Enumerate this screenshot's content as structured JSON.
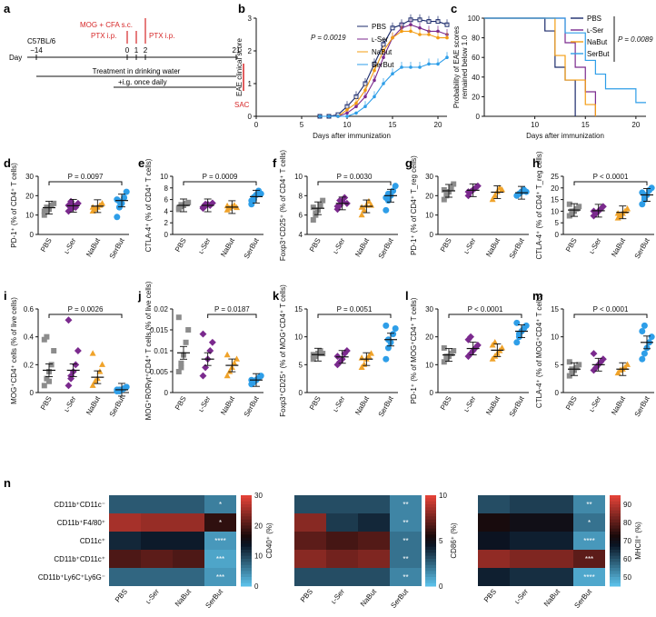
{
  "colors": {
    "PBS": "#8c8c8c",
    "L-Ser": "#7b2a8e",
    "NaBut": "#f0a32a",
    "SerBut": "#2e9ee8",
    "red": "#d62728",
    "line_PBS": "#1b2a6b",
    "line_NaBut": "#f39c12"
  },
  "groups": [
    "PBS",
    "L-Ser",
    "NaBut",
    "SerBut"
  ],
  "panel_a": {
    "label": "a",
    "strain": "C57BL/6",
    "day_label": "Day",
    "days": [
      "−14",
      "0",
      "1",
      "2",
      "21"
    ],
    "mog": "MOG + CFA s.c.",
    "ptx1": "PTX i.p.",
    "ptx2": "PTX i.p.",
    "treatment": "Treatment in drinking water",
    "ig": "+i.g. once daily",
    "sac": "SAC"
  },
  "chart_data": [
    {
      "id": "b",
      "type": "line",
      "ylabel": "EAE clinical score",
      "xlabel": "Days after immunization",
      "pvalue": "P = 0.0019",
      "xlim": [
        0,
        21
      ],
      "ylim": [
        0,
        3
      ],
      "xticks": [
        0,
        5,
        10,
        15,
        20
      ],
      "yticks": [
        0,
        1,
        2,
        3
      ],
      "x": [
        7,
        8,
        9,
        10,
        11,
        12,
        13,
        14,
        15,
        16,
        17,
        18,
        19,
        20,
        21
      ],
      "series": [
        {
          "name": "PBS",
          "values": [
            0,
            0,
            0.05,
            0.3,
            0.6,
            1.0,
            1.6,
            2.2,
            2.7,
            2.8,
            2.95,
            2.95,
            2.9,
            2.9,
            2.8
          ]
        },
        {
          "name": "L-Ser",
          "values": [
            0,
            0,
            0,
            0.1,
            0.3,
            0.6,
            1.1,
            1.8,
            2.4,
            2.7,
            2.8,
            2.7,
            2.6,
            2.6,
            2.5
          ]
        },
        {
          "name": "NaBut",
          "values": [
            0,
            0,
            0,
            0.2,
            0.4,
            0.8,
            1.4,
            2.0,
            2.4,
            2.6,
            2.6,
            2.5,
            2.5,
            2.4,
            2.4
          ]
        },
        {
          "name": "SerBut",
          "values": [
            0,
            0,
            0,
            0,
            0.1,
            0.3,
            0.6,
            1.0,
            1.3,
            1.5,
            1.5,
            1.5,
            1.6,
            1.6,
            1.8
          ]
        }
      ]
    },
    {
      "id": "c",
      "type": "line",
      "ylabel": "Probability of EAE scores remained below 1.0",
      "xlabel": "Days after immunization",
      "pvalue": "P = 0.0089",
      "xlim": [
        5,
        21
      ],
      "ylim": [
        0,
        100
      ],
      "xticks": [
        10,
        15,
        20
      ],
      "yticks": [
        0,
        20,
        40,
        60,
        80,
        100
      ],
      "series": [
        {
          "name": "PBS",
          "steps": [
            [
              5,
              100
            ],
            [
              11,
              100
            ],
            [
              11,
              87
            ],
            [
              12,
              87
            ],
            [
              12,
              50
            ],
            [
              13,
              50
            ],
            [
              13,
              37
            ],
            [
              14,
              37
            ],
            [
              14,
              0
            ]
          ]
        },
        {
          "name": "L-Ser",
          "steps": [
            [
              5,
              100
            ],
            [
              13,
              100
            ],
            [
              13,
              75
            ],
            [
              14,
              75
            ],
            [
              14,
              50
            ],
            [
              15,
              50
            ],
            [
              15,
              25
            ],
            [
              16,
              25
            ],
            [
              16,
              0
            ]
          ]
        },
        {
          "name": "NaBut",
          "steps": [
            [
              5,
              100
            ],
            [
              12,
              100
            ],
            [
              12,
              62
            ],
            [
              13,
              62
            ],
            [
              13,
              37
            ],
            [
              15,
              37
            ],
            [
              15,
              12
            ],
            [
              16,
              12
            ],
            [
              16,
              0
            ]
          ]
        },
        {
          "name": "SerBut",
          "steps": [
            [
              5,
              100
            ],
            [
              13,
              100
            ],
            [
              13,
              85
            ],
            [
              15,
              85
            ],
            [
              15,
              57
            ],
            [
              16,
              57
            ],
            [
              16,
              43
            ],
            [
              17,
              43
            ],
            [
              17,
              28
            ],
            [
              20,
              28
            ],
            [
              20,
              14
            ],
            [
              21,
              14
            ]
          ]
        }
      ]
    },
    {
      "id": "d",
      "type": "scatter",
      "ylabel": "PD-1⁺ (% of CD4⁺ T cells)",
      "ylim": [
        0,
        30
      ],
      "yticks": [
        0,
        10,
        20,
        30
      ],
      "pvalue": "P = 0.0097",
      "bracket": [
        0,
        3
      ],
      "mean": [
        13.8,
        14.8,
        14.6,
        17.5
      ],
      "points": [
        [
          10,
          12,
          13,
          15,
          16,
          12,
          14
        ],
        [
          12,
          13,
          15,
          14,
          16,
          15,
          17,
          14
        ],
        [
          12,
          13,
          14,
          15,
          16,
          14
        ],
        [
          9,
          14,
          16,
          19,
          22,
          18,
          17
        ]
      ]
    },
    {
      "id": "e",
      "type": "scatter",
      "ylabel": "CTLA-4⁺ (% of CD4⁺ T cells)",
      "ylim": [
        0,
        10
      ],
      "yticks": [
        0,
        2,
        4,
        6,
        8,
        10
      ],
      "pvalue": "P = 0.0009",
      "bracket": [
        0,
        3
      ],
      "mean": [
        5.0,
        5.0,
        4.7,
        6.5
      ],
      "points": [
        [
          4.3,
          4.8,
          5.0,
          5.3,
          5.5,
          4.6,
          5.1
        ],
        [
          4.5,
          4.9,
          5.2,
          5.0,
          5.4,
          4.7,
          5.2
        ],
        [
          4.2,
          4.5,
          4.8,
          5.0,
          4.6,
          4.9
        ],
        [
          5.2,
          6.0,
          6.8,
          7.5,
          7.0,
          5.8,
          6.4
        ]
      ]
    },
    {
      "id": "f",
      "type": "scatter",
      "ylabel": "Foxp3⁺CD25⁺ (% of CD4⁺ T cells)",
      "ylim": [
        4,
        10
      ],
      "yticks": [
        4,
        6,
        8,
        10
      ],
      "pvalue": "P = 0.0030",
      "bracket": [
        0,
        3
      ],
      "mean": [
        6.7,
        7.2,
        6.9,
        8.0
      ],
      "points": [
        [
          5.5,
          6.0,
          6.5,
          7.0,
          7.5,
          6.8,
          6.2
        ],
        [
          6.6,
          7.0,
          7.4,
          7.8,
          7.2,
          6.9,
          7.5
        ],
        [
          6.0,
          6.5,
          7.0,
          7.4,
          7.0,
          6.8
        ],
        [
          6.5,
          7.5,
          8.0,
          8.5,
          9.0,
          7.8,
          8.2
        ]
      ]
    },
    {
      "id": "g",
      "type": "scatter",
      "ylabel": "PD-1⁺ (% of CD4⁺ T_reg cells)",
      "ylim": [
        0,
        30
      ],
      "yticks": [
        0,
        10,
        20,
        30
      ],
      "mean": [
        22.5,
        22.8,
        21.8,
        21.5
      ],
      "points": [
        [
          18,
          20,
          22,
          24,
          26,
          23,
          21
        ],
        [
          20,
          22,
          23,
          24,
          25,
          22
        ],
        [
          18,
          20,
          22,
          24,
          23
        ],
        [
          20,
          21,
          22,
          23,
          22
        ]
      ]
    },
    {
      "id": "h",
      "type": "scatter",
      "ylabel": "CTLA-4⁺ (% of CD4⁺ T_reg cells)",
      "ylim": [
        0,
        25
      ],
      "yticks": [
        0,
        5,
        10,
        15,
        20,
        25
      ],
      "pvalue": "P < 0.0001",
      "bracket": [
        0,
        3
      ],
      "mean": [
        10.5,
        10.2,
        9.5,
        17.0
      ],
      "points": [
        [
          8,
          9,
          10,
          11,
          12,
          13,
          10
        ],
        [
          8,
          9,
          10,
          11,
          12,
          10
        ],
        [
          7,
          8,
          9,
          10,
          11,
          9
        ],
        [
          13,
          15,
          17,
          19,
          20,
          18,
          16
        ]
      ]
    },
    {
      "id": "i",
      "type": "scatter",
      "ylabel": "MOG⁺CD4⁺ cells (% of live cells)",
      "ylim": [
        0,
        0.6
      ],
      "yticks": [
        0,
        0.2,
        0.4,
        0.6
      ],
      "pvalue": "P = 0.0026",
      "bracket": [
        0,
        3
      ],
      "mean": [
        0.16,
        0.16,
        0.11,
        0.02
      ],
      "points": [
        [
          0.05,
          0.1,
          0.15,
          0.2,
          0.3,
          0.38,
          0.4,
          0.08
        ],
        [
          0.05,
          0.1,
          0.15,
          0.2,
          0.3,
          0.52,
          0.12
        ],
        [
          0.05,
          0.08,
          0.1,
          0.15,
          0.2,
          0.28
        ],
        [
          0.01,
          0.02,
          0.02,
          0.03,
          0.04,
          0.02,
          0.01
        ]
      ]
    },
    {
      "id": "j",
      "type": "scatter",
      "ylabel": "MOG⁺RORγt⁺CD4⁺ T cells (% of live cells)",
      "ylim": [
        0,
        0.02
      ],
      "yticks": [
        0,
        0.005,
        0.01,
        0.015,
        0.02
      ],
      "pvalue": "P = 0.0187",
      "bracket": [
        1,
        3
      ],
      "mean": [
        0.0095,
        0.008,
        0.0065,
        0.003
      ],
      "points": [
        [
          0.005,
          0.007,
          0.009,
          0.012,
          0.015,
          0.018,
          0.006
        ],
        [
          0.004,
          0.006,
          0.008,
          0.01,
          0.012,
          0.014
        ],
        [
          0.004,
          0.005,
          0.006,
          0.007,
          0.008,
          0.009
        ],
        [
          0.002,
          0.0025,
          0.003,
          0.0035,
          0.004,
          0.003
        ]
      ]
    },
    {
      "id": "k",
      "type": "scatter",
      "ylabel": "Foxp3⁺CD25⁺ (% of MOG⁺CD4⁺ T cells)",
      "ylim": [
        0,
        15
      ],
      "yticks": [
        0,
        5,
        10,
        15
      ],
      "pvalue": "P = 0.0051",
      "bracket": [
        0,
        3
      ],
      "mean": [
        6.8,
        6.4,
        6.0,
        9.5
      ],
      "points": [
        [
          6.0,
          6.5,
          7.0,
          7.5,
          7.0,
          6.8
        ],
        [
          5.0,
          5.5,
          6.0,
          7.0,
          7.5,
          6.5
        ],
        [
          4.5,
          5.0,
          6.0,
          6.5,
          7.0,
          6.2
        ],
        [
          6.0,
          8.0,
          9.0,
          10.5,
          11.5,
          12.0,
          9.5
        ]
      ]
    },
    {
      "id": "l",
      "type": "scatter",
      "ylabel": "PD-1⁺ (% of MOG⁺CD4⁺ T cells)",
      "ylim": [
        0,
        30
      ],
      "yticks": [
        0,
        10,
        20,
        30
      ],
      "pvalue": "P < 0.0001",
      "bracket": [
        0,
        3
      ],
      "mean": [
        13.5,
        15.8,
        15.2,
        22.0
      ],
      "points": [
        [
          11,
          12,
          13,
          14,
          15,
          16,
          13
        ],
        [
          13,
          14,
          15,
          16,
          17,
          19,
          20
        ],
        [
          12,
          13,
          14,
          15,
          16,
          17,
          18
        ],
        [
          18,
          20,
          22,
          23,
          24,
          25,
          21
        ]
      ]
    },
    {
      "id": "m",
      "type": "scatter",
      "ylabel": "CTLA-4⁺ (% of MOG⁺CD4⁺ T cells)",
      "ylim": [
        0,
        15
      ],
      "yticks": [
        0,
        5,
        10,
        15
      ],
      "pvalue": "P < 0.0001",
      "bracket": [
        0,
        3
      ],
      "mean": [
        4.2,
        5.0,
        4.2,
        9.0
      ],
      "points": [
        [
          3.0,
          3.5,
          4.0,
          4.5,
          5.0,
          5.5,
          4.2
        ],
        [
          4.0,
          4.5,
          5.0,
          5.5,
          6.0,
          7.0
        ],
        [
          3.5,
          4.0,
          4.2,
          4.5,
          5.0
        ],
        [
          6.0,
          7.0,
          8.0,
          9.0,
          10.0,
          11.0,
          12.0
        ]
      ]
    },
    {
      "id": "n1",
      "type": "heatmap",
      "colorbar_label": "CD40⁺ (%)",
      "clim": [
        0,
        30
      ],
      "cbticks": [
        0,
        10,
        20,
        30
      ],
      "rows": [
        "CD11b⁺CD11c⁻",
        "CD11b⁺F4/80⁺",
        "CD11c⁺",
        "CD11b⁺CD11c⁺",
        "CD11b⁺Ly6C⁺Ly6G⁻"
      ],
      "values": [
        [
          8,
          8,
          8,
          5
        ],
        [
          26,
          25,
          25,
          18
        ],
        [
          12,
          13,
          13,
          3
        ],
        [
          20,
          21,
          20,
          2
        ],
        [
          7,
          7,
          7,
          3
        ]
      ],
      "stars": [
        [
          "",
          "",
          "",
          "*"
        ],
        [
          "",
          "",
          "",
          "*"
        ],
        [
          "",
          "",
          "",
          "****"
        ],
        [
          "",
          "",
          "",
          "***"
        ],
        [
          "",
          "",
          "",
          "***"
        ]
      ]
    },
    {
      "id": "n2",
      "type": "heatmap",
      "colorbar_label": "CD86⁺ (%)",
      "clim": [
        0,
        10
      ],
      "cbticks": [
        0,
        5,
        10
      ],
      "values": [
        [
          3,
          3,
          3,
          1.5
        ],
        [
          8,
          3.5,
          4,
          1.5
        ],
        [
          7,
          6.5,
          6.8,
          2
        ],
        [
          8,
          7.5,
          7.8,
          2
        ],
        [
          3,
          3,
          3,
          1.5
        ]
      ],
      "stars": [
        [
          "",
          "",
          "",
          "**"
        ],
        [
          "",
          "",
          "",
          "**"
        ],
        [
          "",
          "",
          "",
          "**"
        ],
        [
          "",
          "",
          "",
          "**"
        ],
        [
          "",
          "",
          "",
          "**"
        ]
      ]
    },
    {
      "id": "n3",
      "type": "heatmap",
      "colorbar_label": "MHCII⁺ (%)",
      "clim": [
        45,
        95
      ],
      "cbticks": [
        50,
        60,
        70,
        80,
        90
      ],
      "values": [
        [
          60,
          62,
          62,
          52
        ],
        [
          72,
          70,
          70,
          55
        ],
        [
          68,
          66,
          66,
          50
        ],
        [
          86,
          84,
          84,
          80
        ],
        [
          66,
          64,
          64,
          48
        ]
      ],
      "stars": [
        [
          "",
          "",
          "",
          "**"
        ],
        [
          "",
          "",
          "",
          "*"
        ],
        [
          "",
          "",
          "",
          "****"
        ],
        [
          "",
          "",
          "",
          "***"
        ],
        [
          "",
          "",
          "",
          "****"
        ]
      ]
    }
  ]
}
